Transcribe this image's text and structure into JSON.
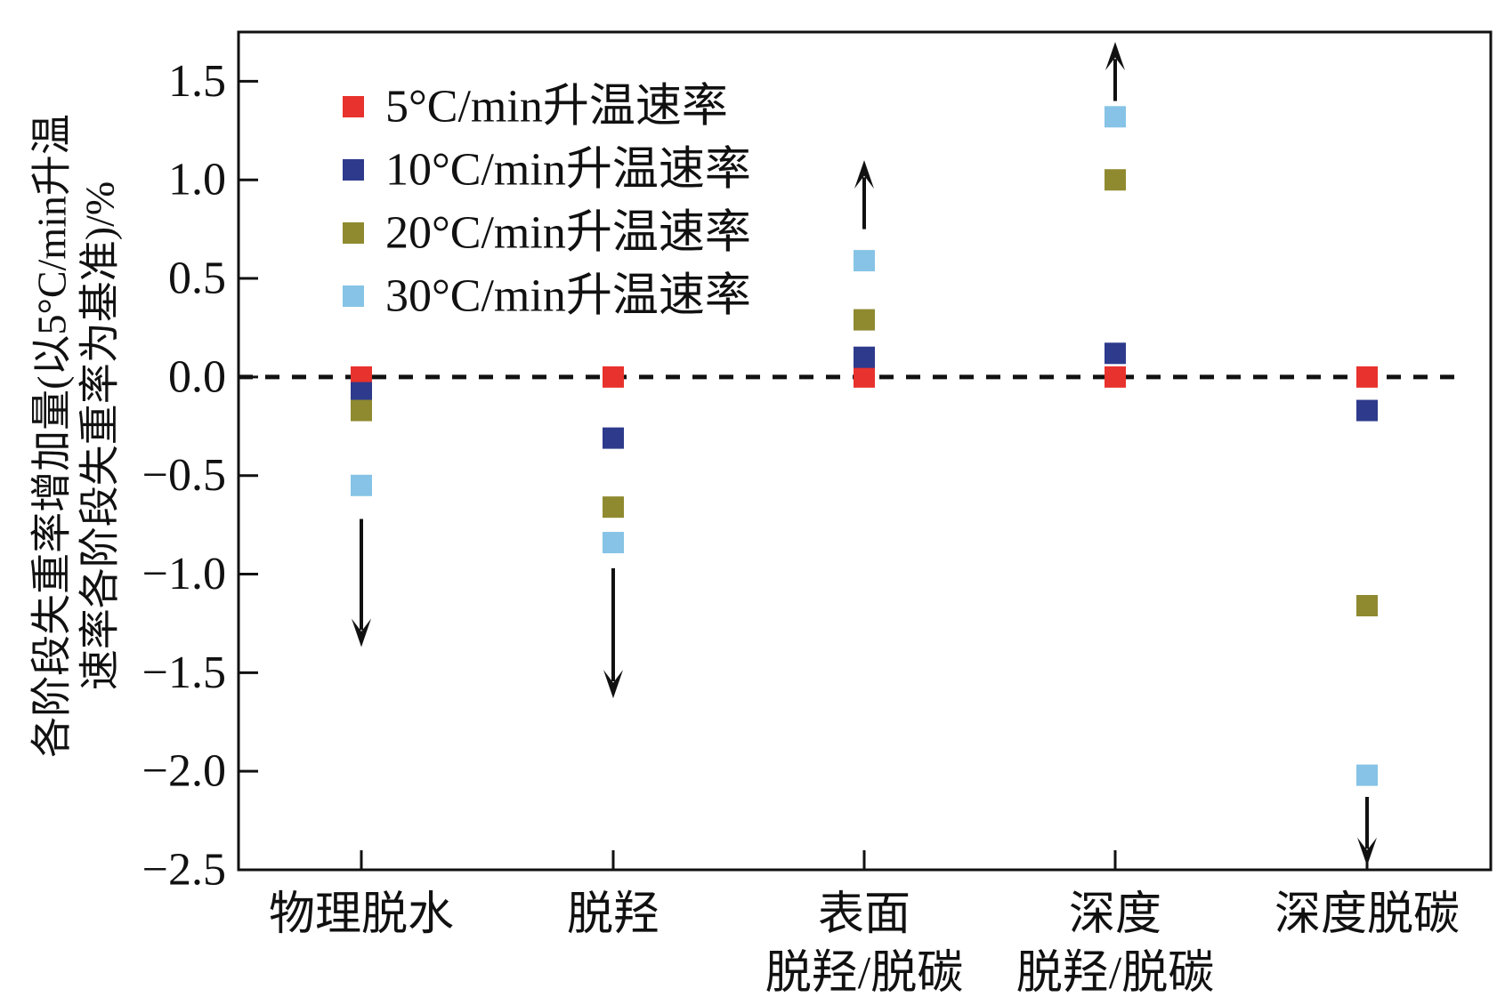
{
  "chart_data": {
    "type": "scatter",
    "title": "",
    "xlabel": "",
    "ylabel_lines": [
      "各阶段失重率增加量(以5°C/min升温",
      "速率各阶段失重率为基准)/%"
    ],
    "ylim": [
      -2.5,
      1.75
    ],
    "yticks": [
      1.5,
      1.0,
      0.5,
      0.0,
      -0.5,
      -1.0,
      -1.5,
      -2.0,
      -2.5
    ],
    "ytick_labels": [
      "1.5",
      "1.0",
      "0.5",
      "0.0",
      "−0.5",
      "−1.0",
      "−1.5",
      "−2.0",
      "−2.5"
    ],
    "categories": [
      {
        "lines": [
          "物理脱水"
        ]
      },
      {
        "lines": [
          "脱羟"
        ]
      },
      {
        "lines": [
          "表面",
          "脱羟/脱碳"
        ]
      },
      {
        "lines": [
          "深度",
          "脱羟/脱碳"
        ]
      },
      {
        "lines": [
          "深度脱碳"
        ]
      }
    ],
    "series": [
      {
        "name": "5°C/min升温速率",
        "color": "#e8322d",
        "values": [
          0.0,
          0.0,
          0.0,
          0.0,
          0.0
        ]
      },
      {
        "name": "10°C/min升温速率",
        "color": "#2e3a8c",
        "values": [
          -0.08,
          -0.31,
          0.1,
          0.12,
          -0.17
        ]
      },
      {
        "name": "20°C/min升温速率",
        "color": "#8f8a30",
        "values": [
          -0.17,
          -0.66,
          0.29,
          1.0,
          -1.16
        ]
      },
      {
        "name": "30°C/min升温速率",
        "color": "#86c3e6",
        "values": [
          -0.55,
          -0.84,
          0.59,
          1.32,
          -2.02
        ]
      }
    ],
    "reference_line": {
      "y": 0.0,
      "style": "dashed"
    },
    "trend_arrows": [
      {
        "category": 0,
        "from": -0.72,
        "to": -1.37,
        "direction": "down"
      },
      {
        "category": 1,
        "from": -0.97,
        "to": -1.63,
        "direction": "down"
      },
      {
        "category": 2,
        "from": 0.75,
        "to": 1.1,
        "direction": "up"
      },
      {
        "category": 3,
        "from": 1.4,
        "to": 1.7,
        "direction": "up"
      },
      {
        "category": 4,
        "from": -2.13,
        "to": -2.48,
        "direction": "down"
      }
    ],
    "legend_position": "top-left",
    "grid": false
  }
}
